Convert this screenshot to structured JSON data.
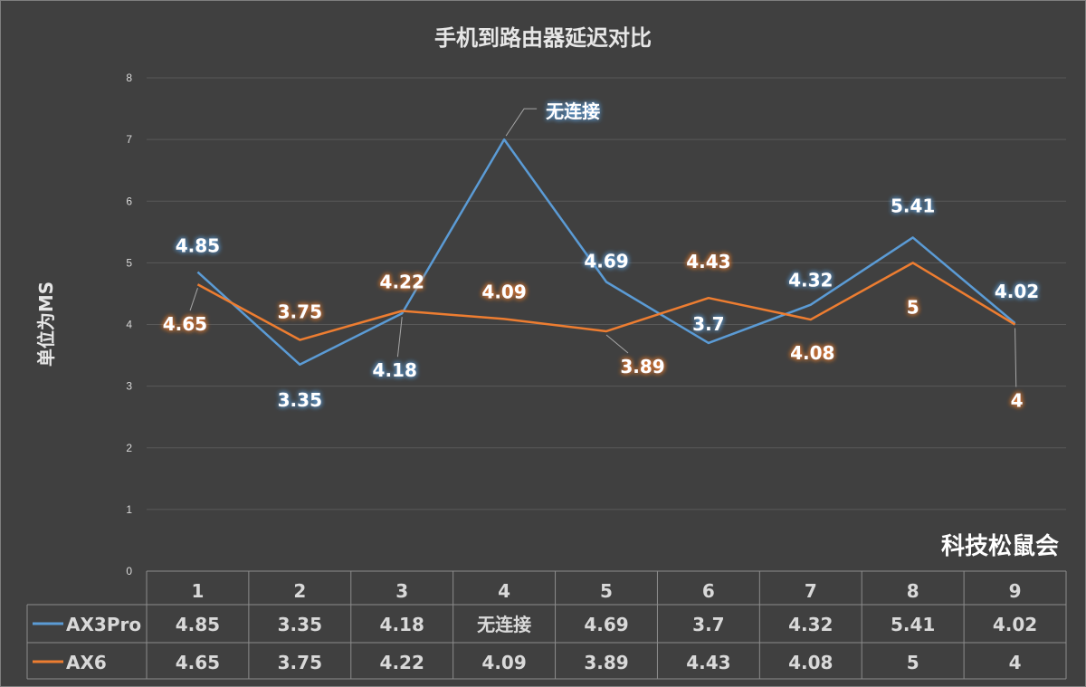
{
  "chart_data": {
    "type": "line",
    "title": "手机到路由器延迟对比",
    "ylabel": "单位为MS",
    "xlabel": "",
    "ylim": [
      0,
      8
    ],
    "yticks": [
      "0",
      "1",
      "2",
      "3",
      "4",
      "5",
      "6",
      "7",
      "8"
    ],
    "categories": [
      "1",
      "2",
      "3",
      "4",
      "5",
      "6",
      "7",
      "8",
      "9"
    ],
    "grid": true,
    "legend": "data-table",
    "series": [
      {
        "name": "AX3Pro",
        "color": "#5b9bd5",
        "values": [
          4.85,
          3.35,
          4.18,
          7,
          4.69,
          3.7,
          4.32,
          5.41,
          4.02
        ],
        "labels": [
          "4.85",
          "3.35",
          "4.18",
          "无连接",
          "4.69",
          "3.7",
          "4.32",
          "5.41",
          "4.02"
        ]
      },
      {
        "name": "AX6",
        "color": "#ed7d31",
        "values": [
          4.65,
          3.75,
          4.22,
          4.09,
          3.89,
          4.43,
          4.08,
          5,
          4
        ],
        "labels": [
          "4.65",
          "3.75",
          "4.22",
          "4.09",
          "3.89",
          "4.43",
          "4.08",
          "5",
          "4"
        ]
      }
    ]
  },
  "watermark": "科技松鼠会"
}
